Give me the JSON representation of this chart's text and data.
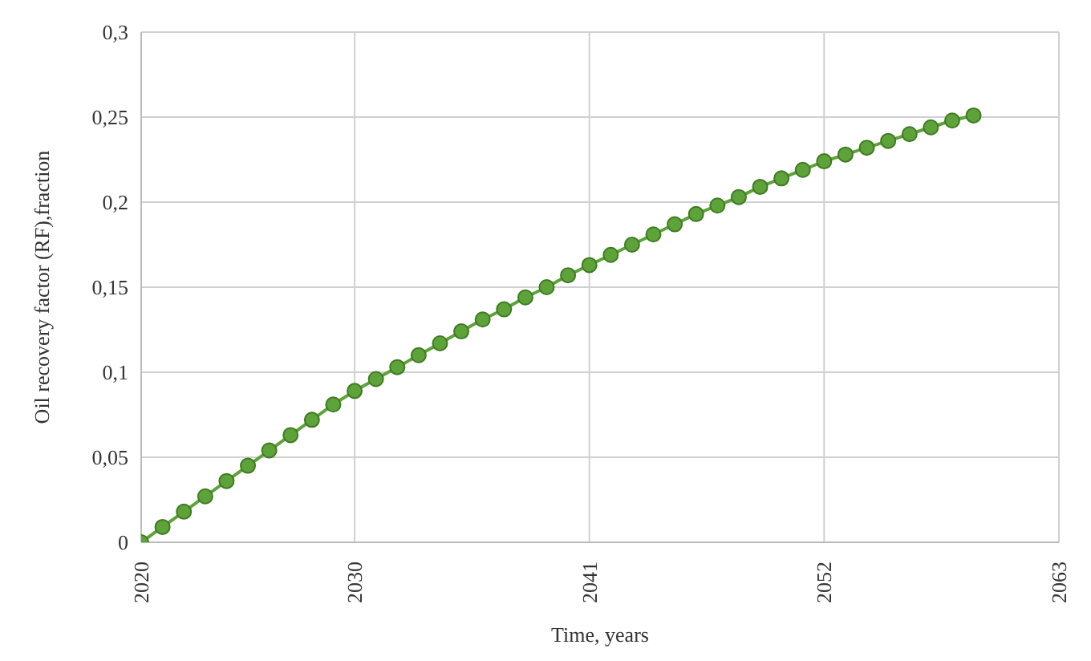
{
  "chart_data": {
    "type": "line",
    "xlabel": "Time, years",
    "ylabel": "Oil recovery factor (RF),fraction",
    "x": [
      2020,
      2021,
      2022,
      2023,
      2024,
      2025,
      2026,
      2027,
      2028,
      2029,
      2030,
      2031,
      2032,
      2033,
      2034,
      2035,
      2036,
      2037,
      2038,
      2039,
      2040,
      2041,
      2042,
      2043,
      2044,
      2045,
      2046,
      2047,
      2048,
      2049,
      2050,
      2051,
      2052,
      2053,
      2054,
      2055,
      2056,
      2057,
      2058,
      2059
    ],
    "series": [
      {
        "color": "#5ea33a",
        "values": [
          0,
          0.009,
          0.018,
          0.027,
          0.036,
          0.045,
          0.054,
          0.063,
          0.072,
          0.081,
          0.089,
          0.096,
          0.103,
          0.11,
          0.117,
          0.124,
          0.131,
          0.137,
          0.144,
          0.15,
          0.157,
          0.163,
          0.169,
          0.175,
          0.181,
          0.187,
          0.193,
          0.198,
          0.203,
          0.209,
          0.214,
          0.219,
          0.224,
          0.228,
          0.232,
          0.236,
          0.24,
          0.244,
          0.248,
          0.251
        ]
      }
    ],
    "xlim": [
      2020,
      2063
    ],
    "xticks": [
      2020,
      2030,
      2041,
      2052,
      2063
    ],
    "ylim": [
      0,
      0.3
    ],
    "yticks": [
      0,
      {
        "value": 0.05,
        "label": "0,05"
      },
      {
        "value": 0.1,
        "label": "0,1"
      },
      {
        "value": 0.15,
        "label": "0,15"
      },
      {
        "value": 0.2,
        "label": "0,2"
      },
      {
        "value": 0.25,
        "label": "0,25"
      },
      {
        "value": 0.3,
        "label": "0,3"
      }
    ],
    "grid": true,
    "marker": "circle",
    "legend": false
  }
}
